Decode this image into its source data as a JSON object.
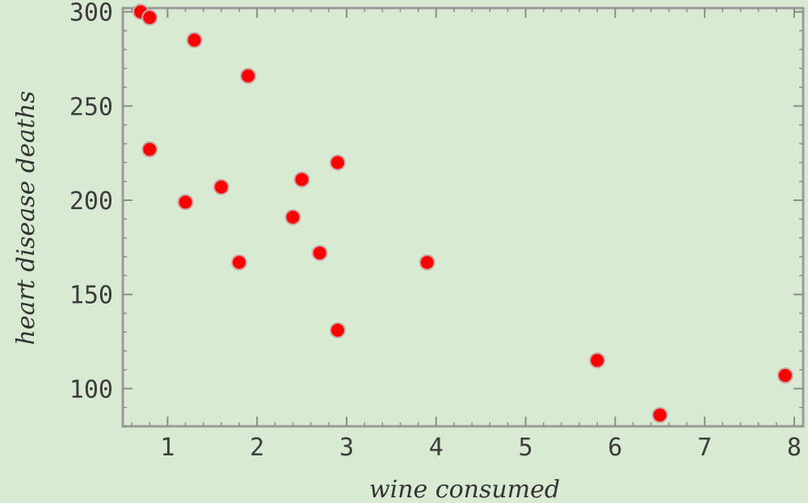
{
  "chart_data": {
    "type": "scatter",
    "xlabel": "wine consumed",
    "ylabel": "heart disease deaths",
    "xlim": [
      0.5,
      8.1
    ],
    "ylim": [
      80,
      302
    ],
    "x_ticks": [
      1,
      2,
      3,
      4,
      5,
      6,
      7,
      8
    ],
    "y_ticks": [
      100,
      150,
      200,
      250,
      300
    ],
    "grid": false,
    "legend": "none",
    "point_color": "#ff0000",
    "background_color": "#d9ead3",
    "points": [
      {
        "x": 0.7,
        "y": 300
      },
      {
        "x": 0.8,
        "y": 297
      },
      {
        "x": 1.3,
        "y": 285
      },
      {
        "x": 1.9,
        "y": 266
      },
      {
        "x": 0.8,
        "y": 227
      },
      {
        "x": 1.2,
        "y": 199
      },
      {
        "x": 1.6,
        "y": 207
      },
      {
        "x": 1.8,
        "y": 167
      },
      {
        "x": 2.4,
        "y": 191
      },
      {
        "x": 2.5,
        "y": 211
      },
      {
        "x": 2.7,
        "y": 172
      },
      {
        "x": 2.9,
        "y": 220
      },
      {
        "x": 2.9,
        "y": 131
      },
      {
        "x": 3.9,
        "y": 167
      },
      {
        "x": 5.8,
        "y": 115
      },
      {
        "x": 6.5,
        "y": 86
      },
      {
        "x": 7.9,
        "y": 107
      }
    ]
  }
}
